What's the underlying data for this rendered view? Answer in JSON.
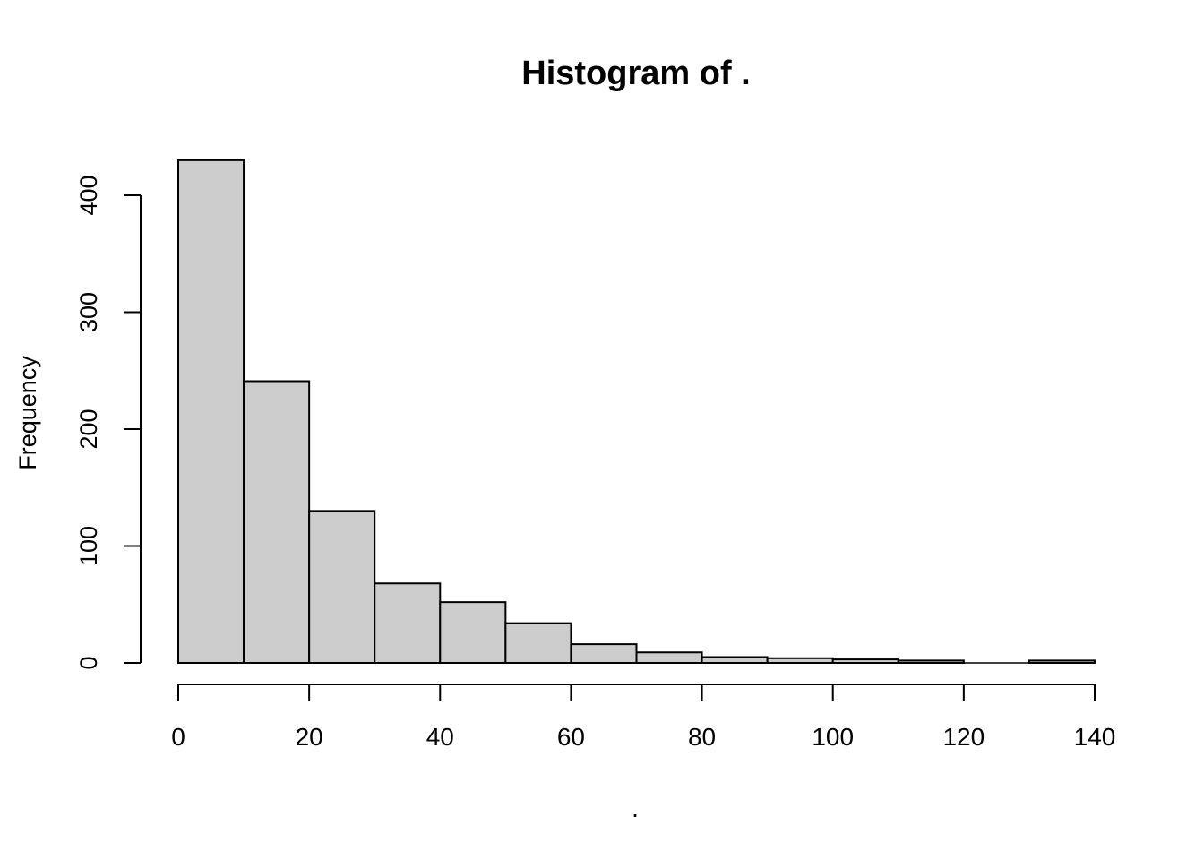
{
  "chart_data": {
    "type": "bar",
    "subtype": "histogram",
    "title": "Histogram of .",
    "xlabel": ".",
    "ylabel": "Frequency",
    "bin_width": 10,
    "bin_edges": [
      0,
      10,
      20,
      30,
      40,
      50,
      60,
      70,
      80,
      90,
      100,
      110,
      120,
      130,
      140
    ],
    "counts": [
      430,
      241,
      130,
      68,
      52,
      34,
      16,
      9,
      5,
      4,
      3,
      2,
      0,
      2
    ],
    "xlim": [
      0,
      140
    ],
    "ylim": [
      0,
      400
    ],
    "x_ticks": [
      0,
      20,
      40,
      60,
      80,
      100,
      120,
      140
    ],
    "y_ticks": [
      0,
      100,
      200,
      300,
      400
    ],
    "grid": false,
    "legend": "none",
    "colors": {
      "bar_fill": "#cccccc",
      "bar_border": "#000000",
      "axis": "#000000",
      "background": "#ffffff"
    }
  }
}
